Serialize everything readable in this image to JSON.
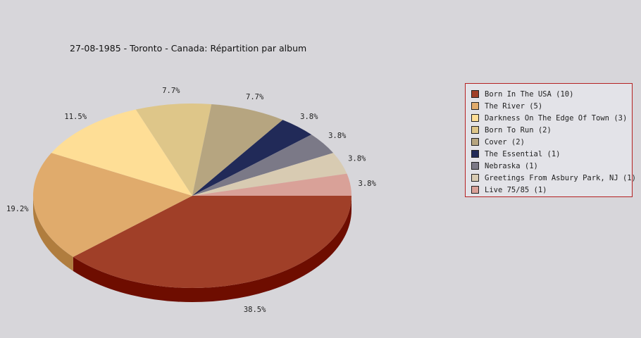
{
  "chart_data": {
    "type": "pie",
    "title": "27-08-1985 - Toronto - Canada:  Répartition par album",
    "slices": [
      {
        "label": "Born In The USA (10)",
        "value": 10,
        "pct_label": "38.5%",
        "color": "#a03f28",
        "side_color": "#6e0d00"
      },
      {
        "label": "The River (5)",
        "value": 5,
        "pct_label": "19.2%",
        "color": "#e0ab6c",
        "side_color": "#b07d3e"
      },
      {
        "label": "Darkness On The Edge Of Town (3)",
        "value": 3,
        "pct_label": "11.5%",
        "color": "#fede96",
        "side_color": "#c8ab64"
      },
      {
        "label": "Born To Run (2)",
        "value": 2,
        "pct_label": "7.7%",
        "color": "#dec689",
        "side_color": "#ad955a"
      },
      {
        "label": "Cover (2)",
        "value": 2,
        "pct_label": "7.7%",
        "color": "#b6a580",
        "side_color": "#867552"
      },
      {
        "label": "The Essential (1)",
        "value": 1,
        "pct_label": "3.8%",
        "color": "#212a58",
        "side_color": "#10153a"
      },
      {
        "label": "Nebraska (1)",
        "value": 1,
        "pct_label": "3.8%",
        "color": "#7b7987",
        "side_color": "#57555f"
      },
      {
        "label": "Greetings From Asbury Park, NJ (1)",
        "value": 1,
        "pct_label": "3.8%",
        "color": "#d8cbb2",
        "side_color": "#a89b82"
      },
      {
        "label": "Live 75/85 (1)",
        "value": 1,
        "pct_label": "3.8%",
        "color": "#d9a198",
        "side_color": "#a97168"
      }
    ],
    "legend_position": "right"
  }
}
